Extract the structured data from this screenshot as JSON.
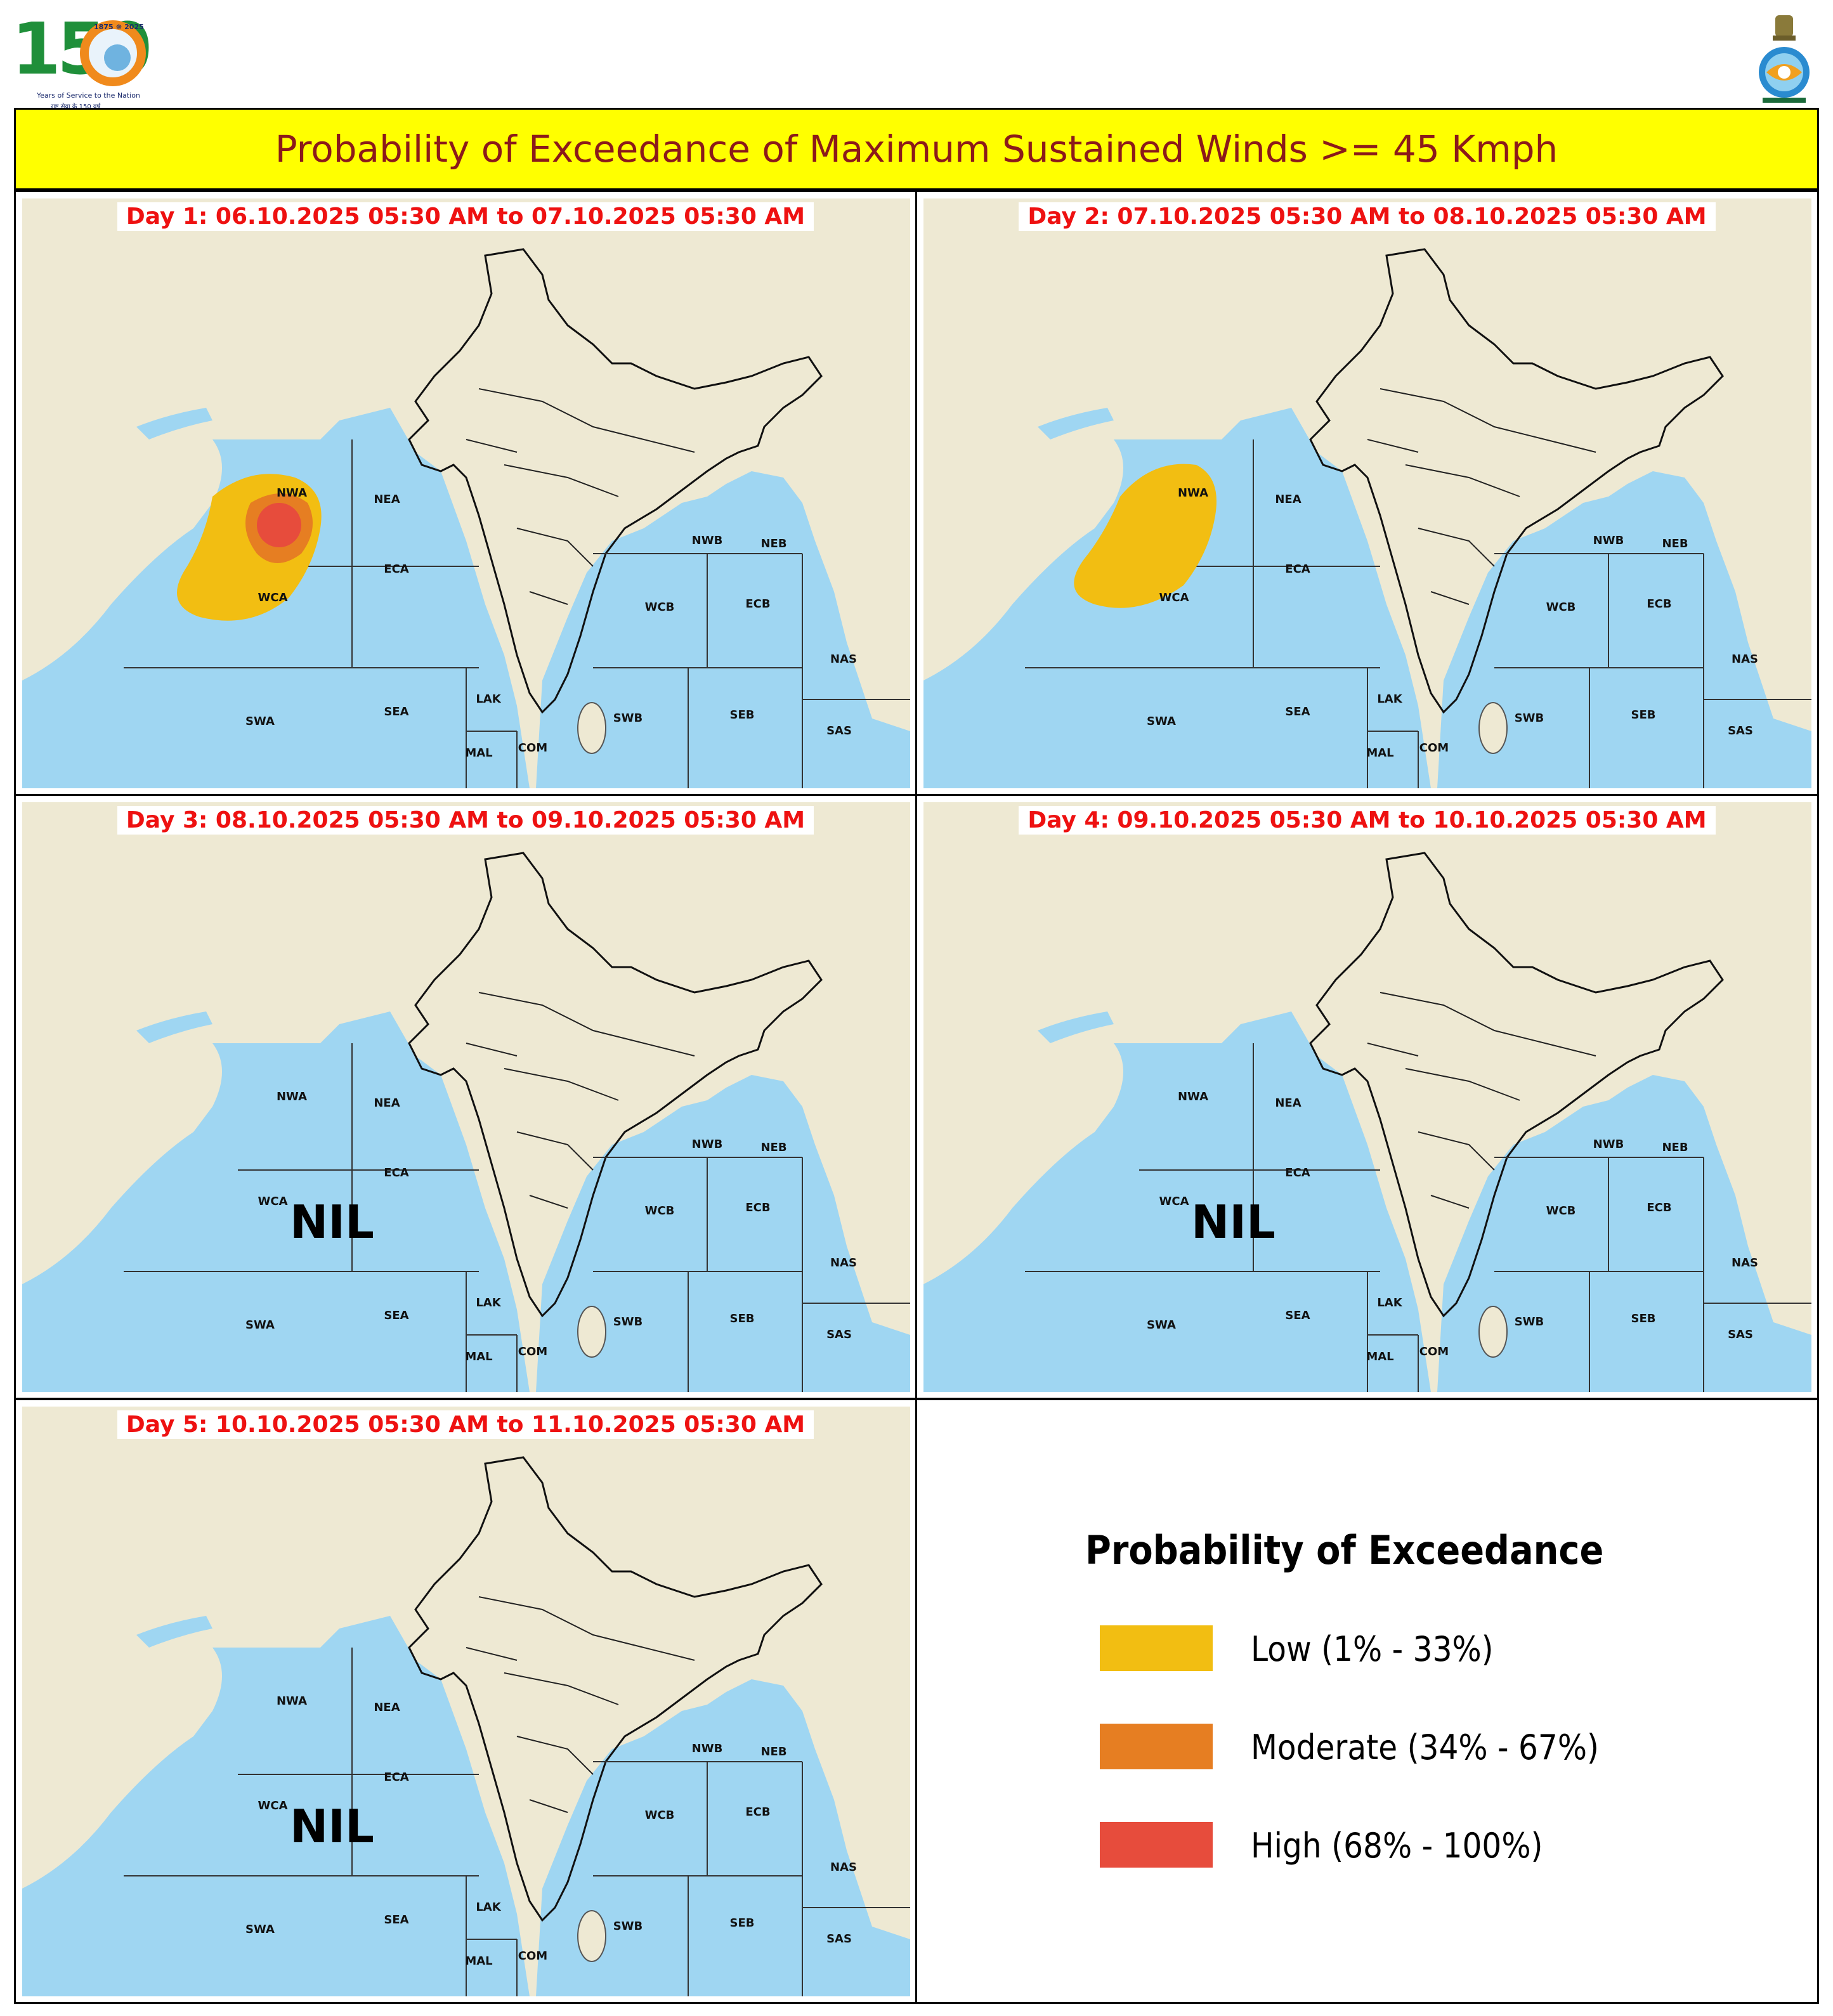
{
  "header": {
    "logo_left": {
      "digits": "150",
      "years_top": "1875 ☸ 2025",
      "tagline": "Years of Service to the Nation",
      "tagline_hindi": "राष्ट्र सेवा के 150 वर्ष"
    },
    "title": "Probability of Exceedance of Maximum Sustained Winds >= 45 Kmph"
  },
  "panels": [
    {
      "label": "Day 1: 06.10.2025 05:30 AM to 07.10.2025 05:30 AM",
      "probability_areas": [
        "Low",
        "Moderate",
        "High"
      ],
      "nil": ""
    },
    {
      "label": "Day 2: 07.10.2025 05:30 AM to 08.10.2025 05:30 AM",
      "probability_areas": [
        "Low"
      ],
      "nil": ""
    },
    {
      "label": "Day 3: 08.10.2025 05:30 AM to 09.10.2025 05:30 AM",
      "probability_areas": [],
      "nil": "NIL"
    },
    {
      "label": "Day 4: 09.10.2025 05:30 AM to 10.10.2025 05:30 AM",
      "probability_areas": [],
      "nil": "NIL"
    },
    {
      "label": "Day 5: 10.10.2025 05:30 AM to 11.10.2025 05:30 AM",
      "probability_areas": [],
      "nil": "NIL"
    }
  ],
  "regions": [
    "NWA",
    "NEA",
    "WCA",
    "ECA",
    "SWA",
    "SEA",
    "LAK",
    "MAL",
    "COM",
    "NWB",
    "NEB",
    "WCB",
    "ECB",
    "SWB",
    "SEB",
    "NAS",
    "SAS"
  ],
  "legend": {
    "title": "Probability of Exceedance",
    "items": [
      {
        "label": "Low (1% - 33%)",
        "color": "#f2be12"
      },
      {
        "label": "Moderate (34% - 67%)",
        "color": "#e67e22"
      },
      {
        "label": "High (68% - 100%)",
        "color": "#e74c3c"
      }
    ]
  },
  "colors": {
    "title_bg": "#ffff00",
    "title_text": "#8b1a1a",
    "day_label": "#ee1111",
    "land": "#eee9d3",
    "sea": "#9fd6f2"
  }
}
